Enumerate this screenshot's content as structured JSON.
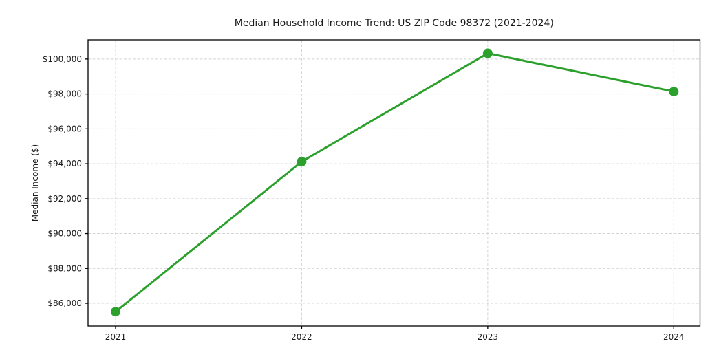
{
  "chart_data": {
    "type": "line",
    "title": "Median Household Income Trend: US ZIP Code 98372 (2021-2024)",
    "xlabel": "",
    "ylabel": "Median Income ($)",
    "categories": [
      "2021",
      "2022",
      "2023",
      "2024"
    ],
    "series": [
      {
        "name": "Median Household Income",
        "values": [
          85520,
          94120,
          100330,
          98140
        ]
      }
    ],
    "y_ticks": [
      86000,
      88000,
      90000,
      92000,
      94000,
      96000,
      98000,
      100000
    ],
    "y_tick_labels": [
      "$86,000",
      "$88,000",
      "$90,000",
      "$92,000",
      "$94,000",
      "$96,000",
      "$98,000",
      "$100,000"
    ],
    "ylim": [
      84700,
      101100
    ],
    "grid": true,
    "grid_style": "dashed",
    "legend_position": "none",
    "colors": {
      "line": "#2ca02c",
      "marker": "#2ca02c",
      "grid": "#d4d4d4",
      "spine": "#000000",
      "background": "#ffffff",
      "text": "#1a1a1a"
    }
  }
}
